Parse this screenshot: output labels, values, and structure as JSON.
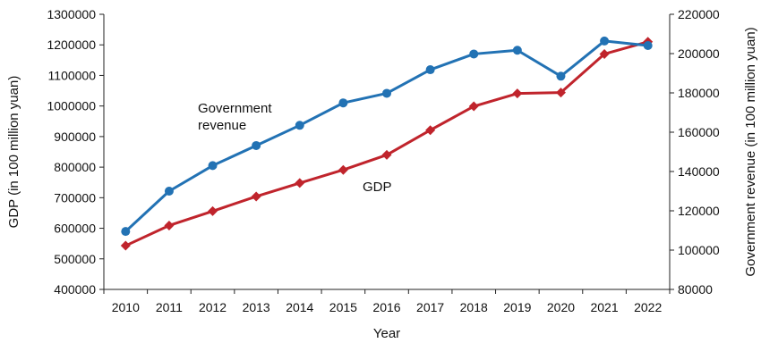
{
  "chart_data": {
    "type": "line",
    "title": "",
    "xlabel": "Year",
    "ylabel_left": "GDP (in 100 million yuan)",
    "ylabel_right": "Government revenue (in 100 million yuan)",
    "categories": [
      "2010",
      "2011",
      "2012",
      "2013",
      "2014",
      "2015",
      "2016",
      "2017",
      "2018",
      "2019",
      "2020",
      "2021",
      "2022"
    ],
    "ylim_left": [
      400000,
      1300000
    ],
    "yticks_left": [
      400000,
      500000,
      600000,
      700000,
      800000,
      900000,
      1000000,
      1100000,
      1200000,
      1300000
    ],
    "ylim_right": [
      80000,
      220000
    ],
    "yticks_right": [
      80000,
      100000,
      120000,
      140000,
      160000,
      180000,
      200000,
      220000
    ],
    "grid": false,
    "series": [
      {
        "name": "GDP",
        "axis": "left",
        "color": "#c0242c",
        "marker": "diamond",
        "values": [
          543000,
          609000,
          656000,
          704000,
          748000,
          791000,
          840000,
          921000,
          999000,
          1041000,
          1044000,
          1170000,
          1210000
        ]
      },
      {
        "name": "Government revenue",
        "axis": "right",
        "color": "#2272b4",
        "marker": "circle",
        "values": [
          109500,
          130000,
          143000,
          153200,
          163500,
          174900,
          179800,
          191800,
          199800,
          201700,
          188500,
          206400,
          204100
        ]
      }
    ],
    "annotations": [
      {
        "series": "Government revenue",
        "lines": [
          "Government",
          "revenue"
        ]
      },
      {
        "series": "GDP",
        "lines": [
          "GDP"
        ]
      }
    ]
  }
}
